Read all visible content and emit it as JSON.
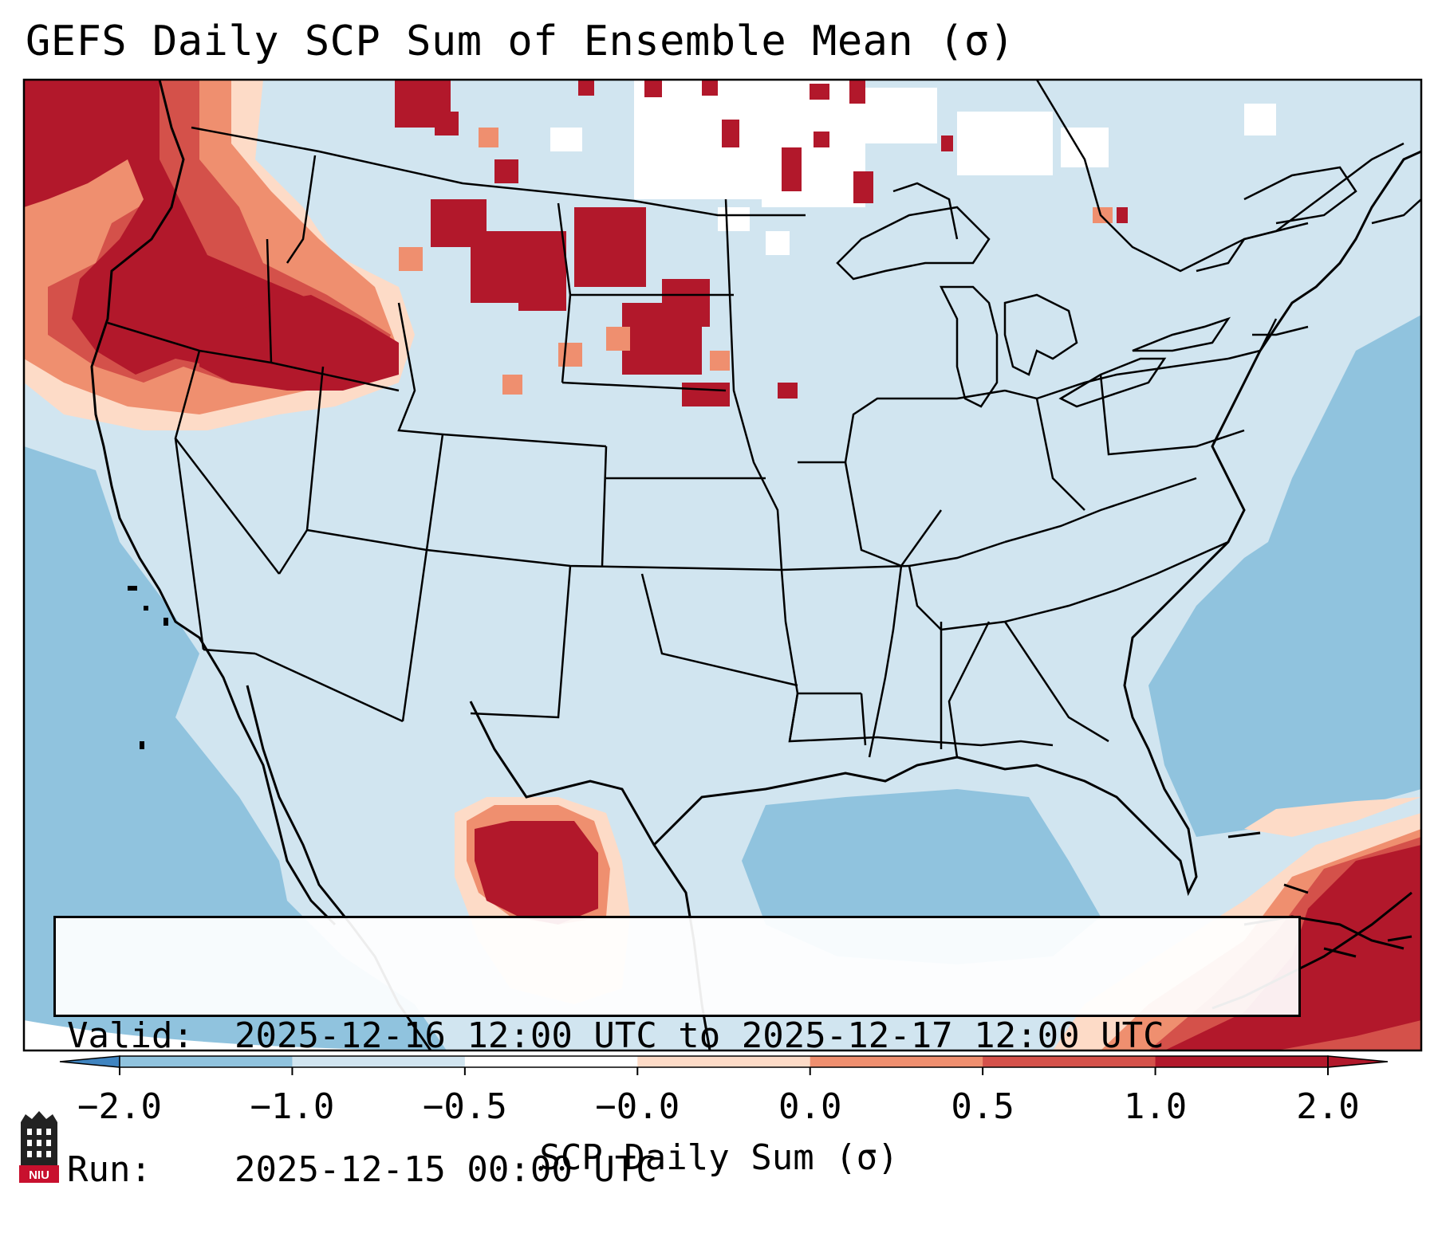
{
  "title": "GEFS Daily SCP Sum of Ensemble Mean (σ)",
  "info": {
    "valid_label": "Valid:",
    "valid_value": "2025-12-16 12:00 UTC to 2025-12-17 12:00 UTC",
    "run_label": "Run:",
    "run_value": "2025-12-15 00:00 UTC"
  },
  "colorbar": {
    "label": "SCP Daily Sum (σ)",
    "ticks": [
      "−2.0",
      "−1.0",
      "−0.5",
      "−0.0",
      "0.0",
      "0.5",
      "1.0",
      "2.0"
    ],
    "colors": {
      "below_min": "#3f84c0",
      "bins": [
        "#3f84c0",
        "#90c3de",
        "#d1e5f0",
        "#ffffff",
        "#fddbc7",
        "#ef8f6f",
        "#d4514a",
        "#b2182b"
      ],
      "above_max": "#b2182b"
    }
  },
  "map_colors": {
    "ocean_low": "#90c3de",
    "land_low": "#d1e5f0",
    "neutral": "#ffffff",
    "weak_pos": "#fddbc7",
    "mod_pos": "#ef8f6f",
    "high_pos": "#d4514a",
    "very_high": "#b2182b"
  },
  "logo_text": "NIU"
}
